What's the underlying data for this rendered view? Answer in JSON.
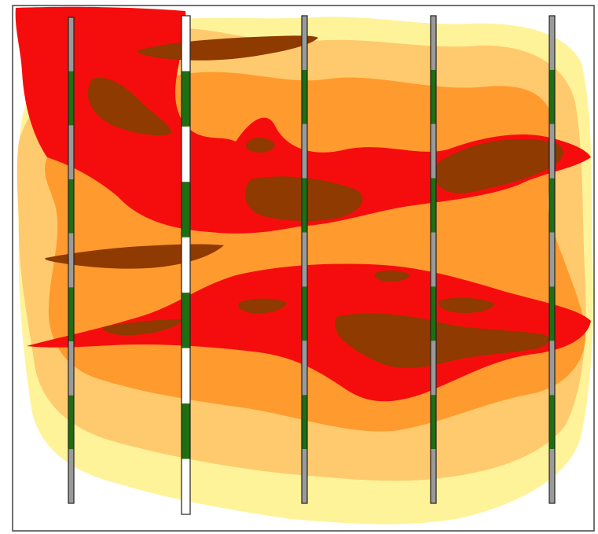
{
  "colors": {
    "background": "#ffffff",
    "frame": "#444444",
    "zone_pale_yellow": "#FFF39A",
    "zone_light_orange": "#FFCA6E",
    "zone_orange": "#FF9A2E",
    "zone_red": "#F50D0D",
    "zone_dark_brown": "#8E3A00",
    "well_segment_green": "#1E6E12",
    "well_segment_gray": "#9A9A9A",
    "well_segment_white": "#ffffff",
    "well_outline": "#222222"
  },
  "wells": [
    {
      "id": "well-1",
      "segments": [
        "gray",
        "green",
        "gray",
        "green",
        "gray",
        "green",
        "gray",
        "green",
        "gray"
      ]
    },
    {
      "id": "well-2",
      "segments": [
        "white",
        "green",
        "white",
        "green",
        "white",
        "green",
        "white",
        "green",
        "white"
      ]
    },
    {
      "id": "well-3",
      "segments": [
        "gray",
        "green",
        "gray",
        "green",
        "gray",
        "green",
        "gray",
        "green",
        "gray"
      ]
    },
    {
      "id": "well-4",
      "segments": [
        "gray",
        "green",
        "gray",
        "green",
        "gray",
        "green",
        "gray",
        "green",
        "gray"
      ]
    },
    {
      "id": "well-5",
      "segments": [
        "gray",
        "green",
        "gray",
        "green",
        "gray",
        "green",
        "gray",
        "green",
        "gray"
      ]
    }
  ]
}
